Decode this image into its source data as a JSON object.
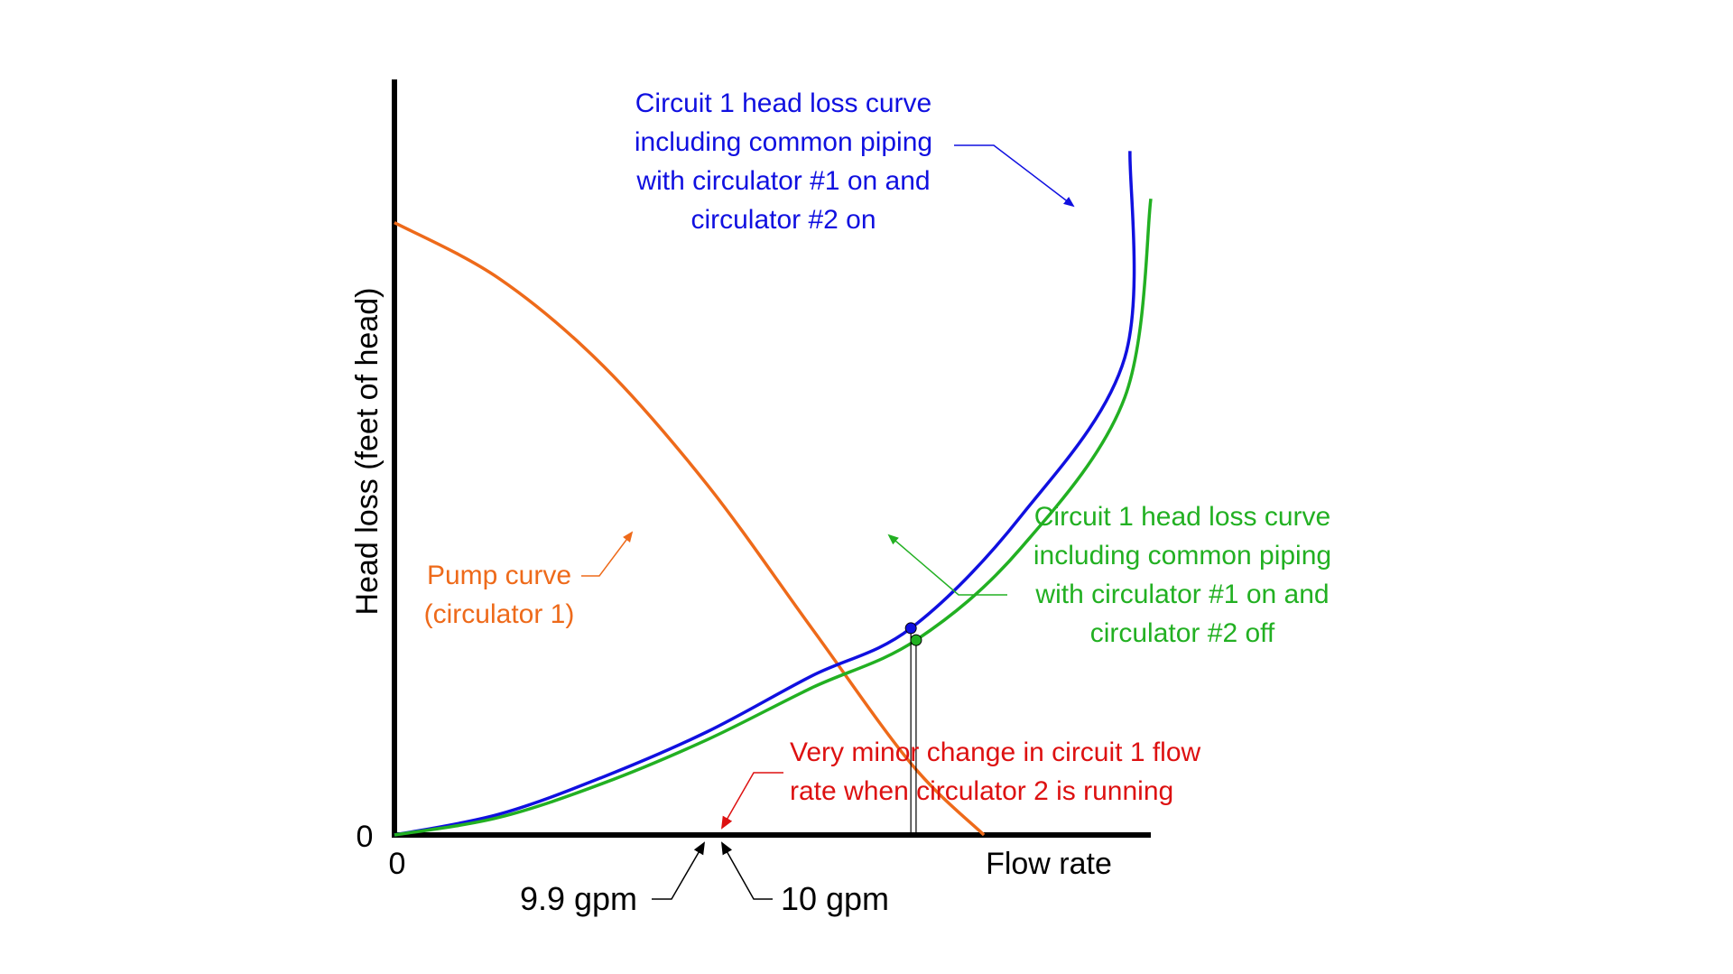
{
  "chart_data": {
    "type": "line",
    "title": "",
    "xlabel": "Flow rate",
    "ylabel": "Head loss (feet of head)",
    "x_origin_label": "0",
    "y_origin_label": "0",
    "axis_units": "normalized (no numeric scale printed besides marked points)",
    "xlim": [
      0,
      14.5
    ],
    "ylim": [
      0,
      9.5
    ],
    "colors": {
      "pump": "#ee6a1a",
      "circ2_on": "#1010e0",
      "circ2_off": "#22b022",
      "note": "#dd1111",
      "axis": "#000000"
    },
    "series": [
      {
        "key": "pump",
        "name": "Pump curve (circulator 1)",
        "label_lines": [
          "Pump curve",
          "(circulator 1)"
        ],
        "color": "#ee6a1a",
        "x": [
          0,
          2,
          4,
          6,
          8,
          9.9,
          11.3
        ],
        "y": [
          7.7,
          7.0,
          5.9,
          4.4,
          2.6,
          0.9,
          0.0
        ]
      },
      {
        "key": "circ2_on",
        "name": "Circuit 1 head loss curve including common piping with circulator #1 on and circulator #2 on",
        "label_lines": [
          "Circuit 1 head loss curve",
          "including  common piping",
          "with circulator #1 on and",
          "circulator #2 on"
        ],
        "color": "#1010e0",
        "x": [
          0,
          2,
          4,
          6,
          8,
          9.9,
          12,
          14,
          14.1
        ],
        "y": [
          0,
          0.26,
          0.73,
          1.3,
          2.0,
          2.6,
          4.0,
          6.0,
          8.6
        ]
      },
      {
        "key": "circ2_off",
        "name": "Circuit 1 head loss curve including common piping with circulator #1 on and circulator #2 off",
        "label_lines": [
          "Circuit 1 head loss curve",
          "including  common piping",
          "with circulator #1 on and",
          "circulator #2 off"
        ],
        "color": "#22b022",
        "x": [
          0,
          2,
          4,
          6,
          8,
          10,
          12,
          14,
          14.5
        ],
        "y": [
          0,
          0.22,
          0.65,
          1.2,
          1.85,
          2.45,
          3.6,
          5.5,
          8.0
        ]
      }
    ],
    "operating_points": [
      {
        "series": "circ2_on",
        "x": 9.9,
        "y": 2.6,
        "label": "9.9 gpm",
        "color": "#1010e0"
      },
      {
        "series": "circ2_off",
        "x": 10,
        "y": 2.45,
        "label": "10 gpm",
        "color": "#22b022"
      }
    ],
    "annotation": {
      "text_lines": [
        "Very minor change in circuit 1 flow",
        "rate when circulator 2 is running"
      ],
      "color": "#dd1111"
    },
    "grid": false,
    "legend": "none (inline labels)"
  }
}
